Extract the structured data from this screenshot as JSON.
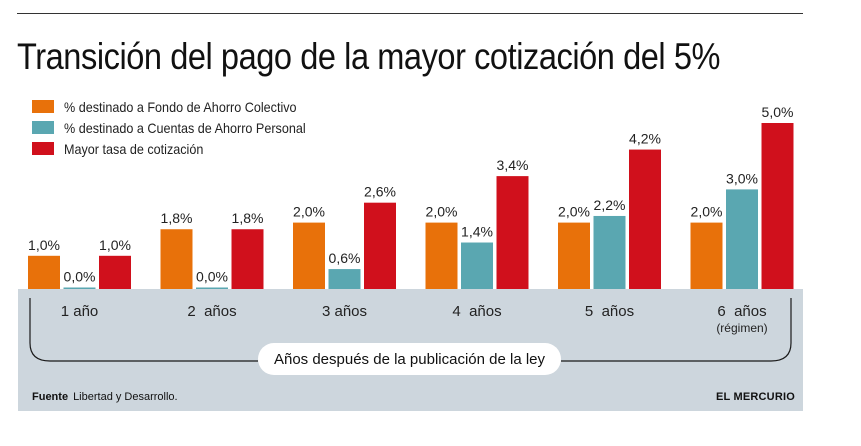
{
  "header": {
    "title": "Transición del pago de la mayor cotización del 5%"
  },
  "legend": [
    {
      "label": "% destinado a Fondo de Ahorro Colectivo",
      "color": "#e8710a"
    },
    {
      "label": "% destinado a Cuentas de Ahorro Personal",
      "color": "#5aa7b1"
    },
    {
      "label": "Mayor tasa de cotización",
      "color": "#d0101c"
    }
  ],
  "footer": {
    "source_label": "Fuente",
    "source_text": "Libertad y Desarrollo.",
    "brand": "EL MERCURIO"
  },
  "chart_data": {
    "type": "bar",
    "title": "Transición del pago de la mayor cotización del 5%",
    "xlabel": "Años después de la publicación de la ley",
    "ylabel": "",
    "ylim": [
      0,
      5
    ],
    "grid": false,
    "legend_position": "top-left",
    "categories": [
      "1 año",
      "2  años",
      "3 años",
      "4  años",
      "5  años",
      "6  años"
    ],
    "category_sublabels": [
      "",
      "",
      "",
      "",
      "",
      "(régimen)"
    ],
    "series": [
      {
        "name": "% destinado a Fondo de Ahorro Colectivo",
        "color": "#e8710a",
        "values": [
          1.0,
          1.8,
          2.0,
          2.0,
          2.0,
          2.0
        ],
        "labels": [
          "1,0%",
          "1,8%",
          "2,0%",
          "2,0%",
          "2,0%",
          "2,0%"
        ]
      },
      {
        "name": "% destinado a Cuentas de Ahorro Personal",
        "color": "#5aa7b1",
        "values": [
          0.0,
          0.0,
          0.6,
          1.4,
          2.2,
          3.0
        ],
        "labels": [
          "0,0%",
          "0,0%",
          "0,6%",
          "1,4%",
          "2,2%",
          "3,0%"
        ]
      },
      {
        "name": "Mayor tasa de cotización",
        "color": "#d0101c",
        "values": [
          1.0,
          1.8,
          2.6,
          3.4,
          4.2,
          5.0
        ],
        "labels": [
          "1,0%",
          "1,8%",
          "2,6%",
          "3,4%",
          "4,2%",
          "5,0%"
        ]
      }
    ]
  }
}
